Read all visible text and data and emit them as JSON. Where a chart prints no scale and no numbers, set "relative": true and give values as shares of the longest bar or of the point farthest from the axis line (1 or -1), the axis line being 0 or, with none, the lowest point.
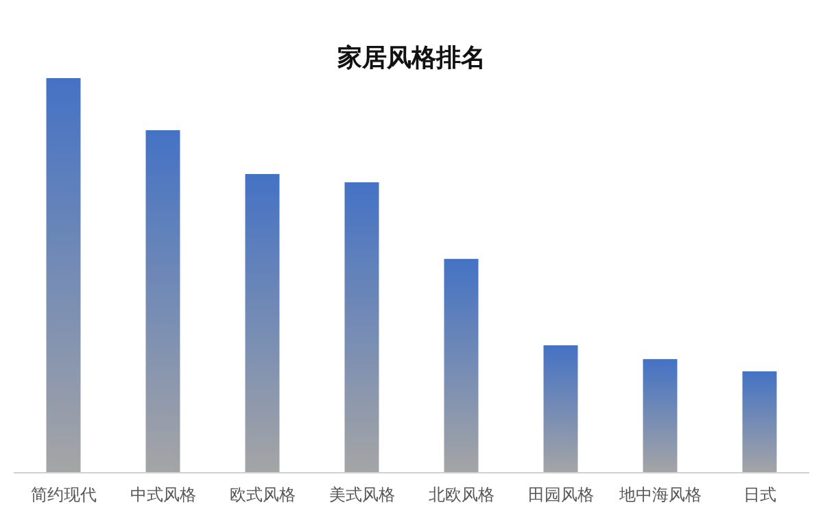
{
  "chart_data": {
    "type": "bar",
    "title": "家居风格排名",
    "relative": true,
    "categories": [
      "简约现代",
      "中式风格",
      "欧式风格",
      "美式风格",
      "北欧风格",
      "田园风格",
      "地中海风格",
      "日式"
    ],
    "values": [
      1,
      0.868,
      0.757,
      0.736,
      0.542,
      0.323,
      0.288,
      0.257
    ],
    "color": "#4472c4"
  }
}
